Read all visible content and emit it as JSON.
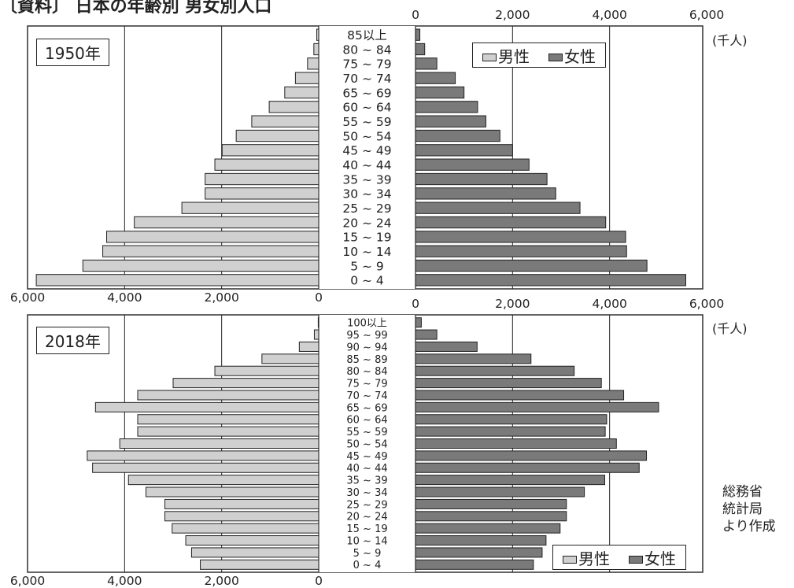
{
  "title": "〔資料〕 日本の年齢別 男女別人口",
  "unit": "(千人)",
  "source": [
    "総務省",
    "統計局",
    "より作成"
  ],
  "colors": {
    "male": "#d0d0d0",
    "female": "#7a7a7a"
  },
  "chart_data": [
    {
      "type": "bar",
      "title": "1950年",
      "legend": [
        "男性",
        "女性"
      ],
      "legend_position": "top-right",
      "xlim": [
        0,
        6000
      ],
      "grid": true,
      "ticks": [
        "0",
        "2,000",
        "4,000",
        "6,000"
      ],
      "categories": [
        "85以上",
        "80 ~ 84",
        "75 ~ 79",
        "70 ~ 74",
        "65 ~ 69",
        "60 ~ 64",
        "55 ~ 59",
        "50 ~ 54",
        "45 ~ 49",
        "40 ~ 44",
        "35 ~ 39",
        "30 ~ 34",
        "25 ~ 29",
        "20 ~ 24",
        "15 ~ 19",
        "10 ~ 14",
        "5 ~ 9",
        "0 ~ 4"
      ],
      "series": [
        {
          "name": "男性",
          "values": [
            40,
            100,
            230,
            480,
            700,
            1020,
            1380,
            1700,
            1990,
            2140,
            2340,
            2340,
            2820,
            3800,
            4370,
            4450,
            4860,
            5820
          ]
        },
        {
          "name": "女性",
          "values": [
            90,
            190,
            440,
            820,
            1000,
            1280,
            1450,
            1740,
            2000,
            2340,
            2710,
            2890,
            3390,
            3920,
            4330,
            4350,
            4770,
            5570
          ]
        }
      ]
    },
    {
      "type": "bar",
      "title": "2018年",
      "legend": [
        "男性",
        "女性"
      ],
      "legend_position": "bottom-right",
      "xlim": [
        0,
        6000
      ],
      "grid": true,
      "ticks": [
        "0",
        "2,000",
        "4,000",
        "6,000"
      ],
      "categories": [
        "100以上",
        "95 ~ 99",
        "90 ~ 94",
        "85 ~ 89",
        "80 ~ 84",
        "75 ~ 79",
        "70 ~ 74",
        "65 ~ 69",
        "60 ~ 64",
        "55 ~ 59",
        "50 ~ 54",
        "45 ~ 49",
        "40 ~ 44",
        "35 ~ 39",
        "30 ~ 34",
        "25 ~ 29",
        "20 ~ 24",
        "15 ~ 19",
        "10 ~ 14",
        "5 ~ 9",
        "0 ~ 4"
      ],
      "series": [
        {
          "name": "男性",
          "values": [
            10,
            90,
            400,
            1170,
            2140,
            3000,
            3730,
            4600,
            3730,
            3730,
            4100,
            4770,
            4660,
            3920,
            3560,
            3170,
            3170,
            3020,
            2740,
            2620,
            2440
          ]
        },
        {
          "name": "女性",
          "values": [
            120,
            440,
            1270,
            2380,
            3270,
            3830,
            4290,
            5010,
            3940,
            3910,
            4140,
            4760,
            4610,
            3900,
            3480,
            3110,
            3110,
            2980,
            2690,
            2610,
            2430
          ]
        }
      ]
    }
  ]
}
